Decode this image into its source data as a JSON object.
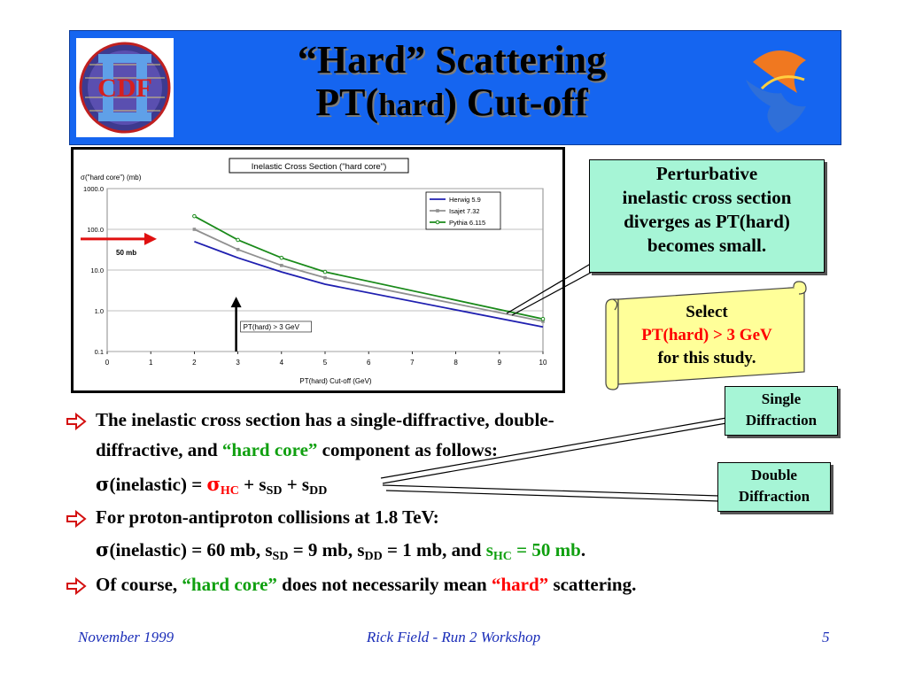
{
  "header": {
    "title_line1": "“Hard” Scattering",
    "title_line2_a": "PT(",
    "title_line2_b": "hard",
    "title_line2_c": ") Cut-off",
    "logo_left_text": "CDF",
    "colors": {
      "header_bg": "#1565f0"
    }
  },
  "chart_data": {
    "type": "line",
    "title": "Inelastic Cross Section (\"hard core\")",
    "ylabel": "σ(\"hard core\")  (mb)",
    "xlabel": "PT(hard) Cut-off   (GeV)",
    "y_scale": "log",
    "ylim": [
      0.1,
      1000
    ],
    "xlim": [
      0,
      10
    ],
    "x_ticks": [
      "0",
      "1",
      "2",
      "3",
      "4",
      "5",
      "6",
      "7",
      "8",
      "9",
      "10"
    ],
    "y_ticks": [
      "1000.0",
      "100.0",
      "10.0",
      "1.0",
      "0.1"
    ],
    "grid": true,
    "legend_position": "top-right",
    "x": [
      2,
      3,
      4,
      5,
      10
    ],
    "series": [
      {
        "name": "Herwig 5.9",
        "color": "#1f1fb0",
        "marker": "none",
        "values": [
          50,
          20,
          9,
          4.5,
          0.4
        ]
      },
      {
        "name": "Isajet 7.32",
        "color": "#909090",
        "marker": "square",
        "values": [
          100,
          32,
          13,
          6.5,
          0.55
        ]
      },
      {
        "name": "Pythia 6.115",
        "color": "#1a8a1a",
        "marker": "circle",
        "values": [
          210,
          55,
          20,
          9,
          0.63
        ]
      }
    ],
    "annotations": {
      "arrow_50mb_label": "50 mb",
      "arrow_ptcut_label": "PT(hard) > 3 GeV"
    }
  },
  "callouts": {
    "perturbative": [
      "Perturbative",
      "inelastic cross section",
      "diverges as PT(hard)",
      "becomes small."
    ],
    "scroll": {
      "line1": "Select",
      "line2": "PT(hard) > 3 GeV",
      "line3": "for this study."
    },
    "single": [
      "Single",
      "Diffraction"
    ],
    "double": [
      "Double",
      "Diffraction"
    ]
  },
  "bullets": {
    "b1_l1": "The inelastic cross section has a single-diffractive, double-",
    "b1_l2a": "diffractive, and ",
    "b1_l2b": "“hard core”",
    "b1_l2c": " component as follows:",
    "b1_l3a": "σ",
    "b1_l3b": "(inelastic) = ",
    "b1_l3c": "σ",
    "b1_l3d": "HC",
    "b1_l3e": " + s",
    "b1_l3f": "SD",
    "b1_l3g": " + s",
    "b1_l3h": "DD",
    "b2_l1": "For proton-antiproton collisions at 1.8 TeV:",
    "b2_l2a": "σ",
    "b2_l2b": "(inelastic) = 60 mb, s",
    "b2_l2c": "SD",
    "b2_l2d": " = 9 mb, s",
    "b2_l2e": "DD",
    "b2_l2f": " = 1 mb, and ",
    "b2_l2g": "s",
    "b2_l2h": "HC",
    "b2_l2i": " = 50 mb",
    "b2_l2j": ".",
    "b3a": "Of course, ",
    "b3b": "“hard core”",
    "b3c": " does not necessarily mean ",
    "b3d": "“hard”",
    "b3e": " scattering."
  },
  "footer": {
    "date": "November 1999",
    "author": "Rick Field - Run 2 Workshop",
    "page": "5"
  }
}
